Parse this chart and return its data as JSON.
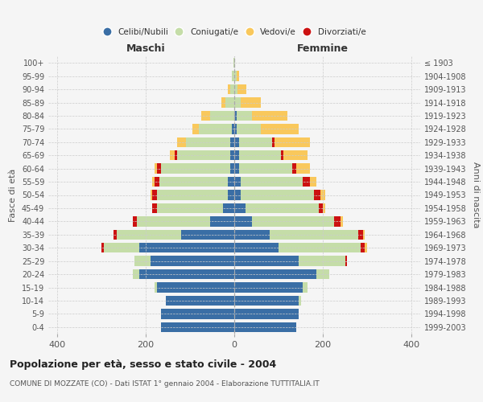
{
  "age_groups": [
    "0-4",
    "5-9",
    "10-14",
    "15-19",
    "20-24",
    "25-29",
    "30-34",
    "35-39",
    "40-44",
    "45-49",
    "50-54",
    "55-59",
    "60-64",
    "65-69",
    "70-74",
    "75-79",
    "80-84",
    "85-89",
    "90-94",
    "95-99",
    "100+"
  ],
  "birth_years": [
    "1999-2003",
    "1994-1998",
    "1989-1993",
    "1984-1988",
    "1979-1983",
    "1974-1978",
    "1969-1973",
    "1964-1968",
    "1959-1963",
    "1954-1958",
    "1949-1953",
    "1944-1948",
    "1939-1943",
    "1934-1938",
    "1929-1933",
    "1924-1928",
    "1919-1923",
    "1914-1918",
    "1909-1913",
    "1904-1908",
    "≤ 1903"
  ],
  "males": {
    "celibi": [
      165,
      165,
      155,
      175,
      215,
      190,
      215,
      120,
      55,
      25,
      15,
      15,
      10,
      10,
      10,
      5,
      0,
      0,
      0,
      0,
      0
    ],
    "coniugati": [
      0,
      0,
      0,
      5,
      15,
      35,
      80,
      145,
      165,
      150,
      160,
      155,
      155,
      120,
      100,
      75,
      55,
      20,
      10,
      5,
      2
    ],
    "vedovi": [
      0,
      0,
      0,
      0,
      0,
      0,
      0,
      0,
      0,
      0,
      5,
      5,
      5,
      10,
      20,
      15,
      20,
      10,
      5,
      0,
      0
    ],
    "divorziati": [
      0,
      0,
      0,
      0,
      0,
      0,
      5,
      8,
      10,
      10,
      10,
      10,
      10,
      5,
      0,
      0,
      0,
      0,
      0,
      0,
      0
    ]
  },
  "females": {
    "nubili": [
      140,
      145,
      145,
      155,
      185,
      145,
      100,
      80,
      40,
      25,
      15,
      15,
      10,
      10,
      10,
      5,
      5,
      0,
      0,
      0,
      0
    ],
    "coniugate": [
      0,
      0,
      5,
      10,
      30,
      105,
      185,
      200,
      185,
      165,
      165,
      140,
      120,
      95,
      75,
      55,
      35,
      15,
      8,
      5,
      2
    ],
    "vedove": [
      0,
      0,
      0,
      0,
      0,
      0,
      5,
      5,
      5,
      5,
      10,
      15,
      30,
      55,
      80,
      85,
      80,
      45,
      20,
      5,
      0
    ],
    "divorziate": [
      0,
      0,
      0,
      0,
      0,
      5,
      10,
      10,
      15,
      10,
      15,
      15,
      10,
      5,
      5,
      0,
      0,
      0,
      0,
      0,
      0
    ]
  },
  "colors": {
    "celibi": "#3A6EA5",
    "coniugati": "#C5DDA8",
    "vedovi": "#F9C85C",
    "divorziati": "#CC1111"
  },
  "title": "Popolazione per età, sesso e stato civile - 2004",
  "subtitle": "COMUNE DI MOZZATE (CO) - Dati ISTAT 1° gennaio 2004 - Elaborazione TUTTITALIA.IT",
  "xlabel_left": "Maschi",
  "xlabel_right": "Femmine",
  "ylabel_left": "Fasce di età",
  "ylabel_right": "Anni di nascita",
  "xlim": 420,
  "background_color": "#f5f5f5",
  "plot_background": "#f5f5f5",
  "grid_color": "#cccccc"
}
